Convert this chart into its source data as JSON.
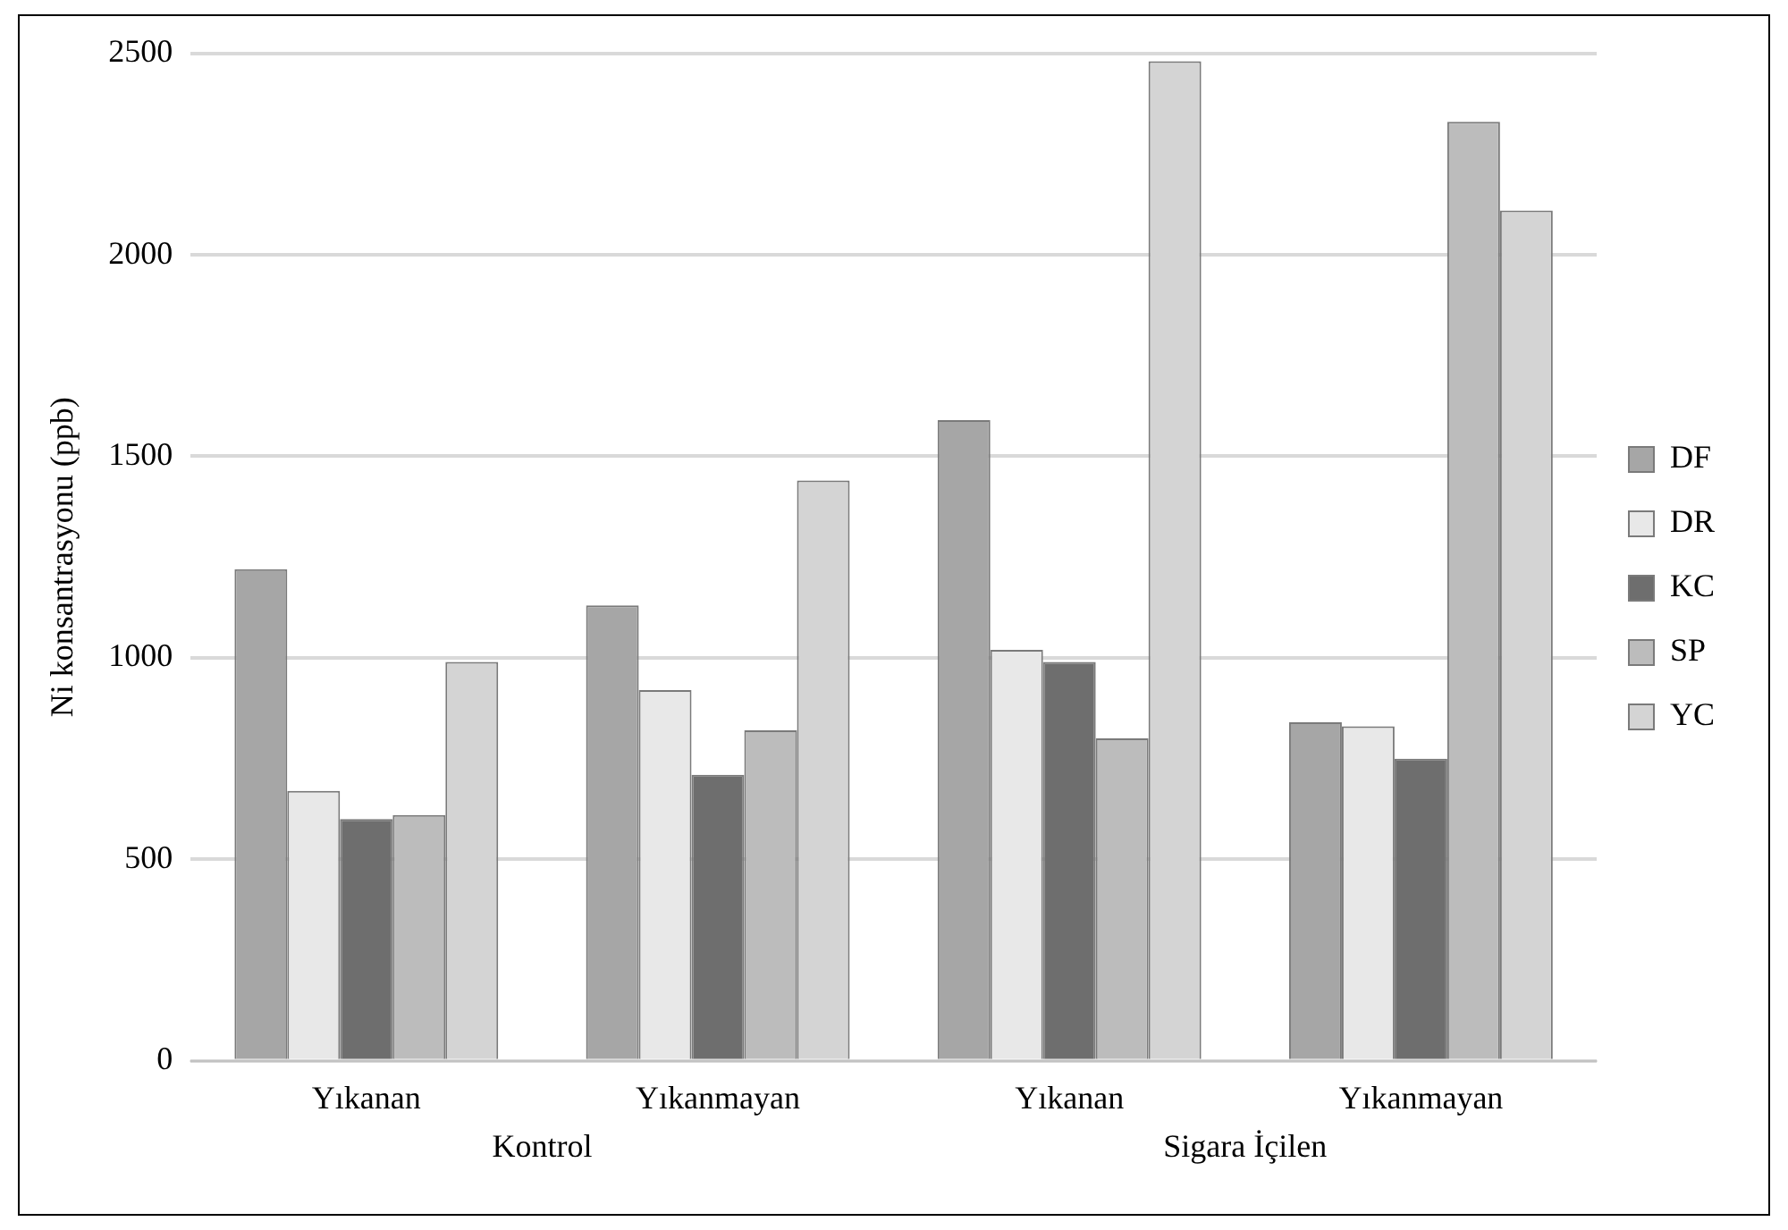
{
  "chart_data": {
    "type": "bar",
    "ylabel": "Ni konsantrasyonu (ppb)",
    "categories": [
      "Yıkanan",
      "Yıkanmayan",
      "Yıkanan",
      "Yıkanmayan"
    ],
    "annotations": [
      "Kontrol",
      "Sigara İçilen"
    ],
    "series": [
      {
        "name": "DF",
        "color": "#a6a6a6",
        "values": [
          1220,
          1130,
          1590,
          840
        ]
      },
      {
        "name": "DR",
        "color": "#e8e8e8",
        "values": [
          670,
          920,
          1020,
          830
        ]
      },
      {
        "name": "KC",
        "color": "#6e6e6e",
        "values": [
          600,
          710,
          990,
          750
        ]
      },
      {
        "name": "SP",
        "color": "#bcbcbc",
        "values": [
          610,
          820,
          800,
          2330
        ]
      },
      {
        "name": "YC",
        "color": "#d4d4d4",
        "values": [
          990,
          1440,
          2480,
          2110
        ]
      }
    ],
    "ylim": [
      0,
      2500
    ],
    "yticks": [
      0,
      500,
      1000,
      1500,
      2000,
      2500
    ],
    "grid": "y",
    "legend": "right"
  }
}
